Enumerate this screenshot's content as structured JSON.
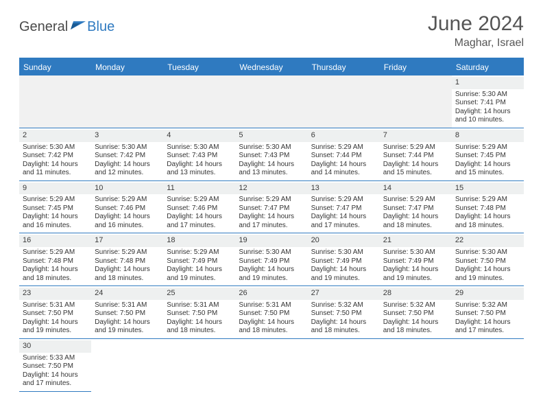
{
  "logo": {
    "text1": "General",
    "text2": "Blue"
  },
  "title": "June 2024",
  "location": "Maghar, Israel",
  "colors": {
    "brand_blue": "#2f7ac0",
    "header_bg": "#2f7ac0",
    "header_text": "#ffffff",
    "daynum_bg": "#eef0f0",
    "text": "#333333",
    "blank_bg": "#f1f1f1"
  },
  "dayHeaders": [
    "Sunday",
    "Monday",
    "Tuesday",
    "Wednesday",
    "Thursday",
    "Friday",
    "Saturday"
  ],
  "leadingBlanks": 6,
  "days": [
    {
      "n": 1,
      "sunrise": "5:30 AM",
      "sunset": "7:41 PM",
      "dl": "14 hours and 10 minutes."
    },
    {
      "n": 2,
      "sunrise": "5:30 AM",
      "sunset": "7:42 PM",
      "dl": "14 hours and 11 minutes."
    },
    {
      "n": 3,
      "sunrise": "5:30 AM",
      "sunset": "7:42 PM",
      "dl": "14 hours and 12 minutes."
    },
    {
      "n": 4,
      "sunrise": "5:30 AM",
      "sunset": "7:43 PM",
      "dl": "14 hours and 13 minutes."
    },
    {
      "n": 5,
      "sunrise": "5:30 AM",
      "sunset": "7:43 PM",
      "dl": "14 hours and 13 minutes."
    },
    {
      "n": 6,
      "sunrise": "5:29 AM",
      "sunset": "7:44 PM",
      "dl": "14 hours and 14 minutes."
    },
    {
      "n": 7,
      "sunrise": "5:29 AM",
      "sunset": "7:44 PM",
      "dl": "14 hours and 15 minutes."
    },
    {
      "n": 8,
      "sunrise": "5:29 AM",
      "sunset": "7:45 PM",
      "dl": "14 hours and 15 minutes."
    },
    {
      "n": 9,
      "sunrise": "5:29 AM",
      "sunset": "7:45 PM",
      "dl": "14 hours and 16 minutes."
    },
    {
      "n": 10,
      "sunrise": "5:29 AM",
      "sunset": "7:46 PM",
      "dl": "14 hours and 16 minutes."
    },
    {
      "n": 11,
      "sunrise": "5:29 AM",
      "sunset": "7:46 PM",
      "dl": "14 hours and 17 minutes."
    },
    {
      "n": 12,
      "sunrise": "5:29 AM",
      "sunset": "7:47 PM",
      "dl": "14 hours and 17 minutes."
    },
    {
      "n": 13,
      "sunrise": "5:29 AM",
      "sunset": "7:47 PM",
      "dl": "14 hours and 17 minutes."
    },
    {
      "n": 14,
      "sunrise": "5:29 AM",
      "sunset": "7:47 PM",
      "dl": "14 hours and 18 minutes."
    },
    {
      "n": 15,
      "sunrise": "5:29 AM",
      "sunset": "7:48 PM",
      "dl": "14 hours and 18 minutes."
    },
    {
      "n": 16,
      "sunrise": "5:29 AM",
      "sunset": "7:48 PM",
      "dl": "14 hours and 18 minutes."
    },
    {
      "n": 17,
      "sunrise": "5:29 AM",
      "sunset": "7:48 PM",
      "dl": "14 hours and 18 minutes."
    },
    {
      "n": 18,
      "sunrise": "5:29 AM",
      "sunset": "7:49 PM",
      "dl": "14 hours and 19 minutes."
    },
    {
      "n": 19,
      "sunrise": "5:30 AM",
      "sunset": "7:49 PM",
      "dl": "14 hours and 19 minutes."
    },
    {
      "n": 20,
      "sunrise": "5:30 AM",
      "sunset": "7:49 PM",
      "dl": "14 hours and 19 minutes."
    },
    {
      "n": 21,
      "sunrise": "5:30 AM",
      "sunset": "7:49 PM",
      "dl": "14 hours and 19 minutes."
    },
    {
      "n": 22,
      "sunrise": "5:30 AM",
      "sunset": "7:50 PM",
      "dl": "14 hours and 19 minutes."
    },
    {
      "n": 23,
      "sunrise": "5:31 AM",
      "sunset": "7:50 PM",
      "dl": "14 hours and 19 minutes."
    },
    {
      "n": 24,
      "sunrise": "5:31 AM",
      "sunset": "7:50 PM",
      "dl": "14 hours and 19 minutes."
    },
    {
      "n": 25,
      "sunrise": "5:31 AM",
      "sunset": "7:50 PM",
      "dl": "14 hours and 18 minutes."
    },
    {
      "n": 26,
      "sunrise": "5:31 AM",
      "sunset": "7:50 PM",
      "dl": "14 hours and 18 minutes."
    },
    {
      "n": 27,
      "sunrise": "5:32 AM",
      "sunset": "7:50 PM",
      "dl": "14 hours and 18 minutes."
    },
    {
      "n": 28,
      "sunrise": "5:32 AM",
      "sunset": "7:50 PM",
      "dl": "14 hours and 18 minutes."
    },
    {
      "n": 29,
      "sunrise": "5:32 AM",
      "sunset": "7:50 PM",
      "dl": "14 hours and 17 minutes."
    },
    {
      "n": 30,
      "sunrise": "5:33 AM",
      "sunset": "7:50 PM",
      "dl": "14 hours and 17 minutes."
    }
  ],
  "labels": {
    "sunrise": "Sunrise:",
    "sunset": "Sunset:",
    "daylight": "Daylight:"
  }
}
